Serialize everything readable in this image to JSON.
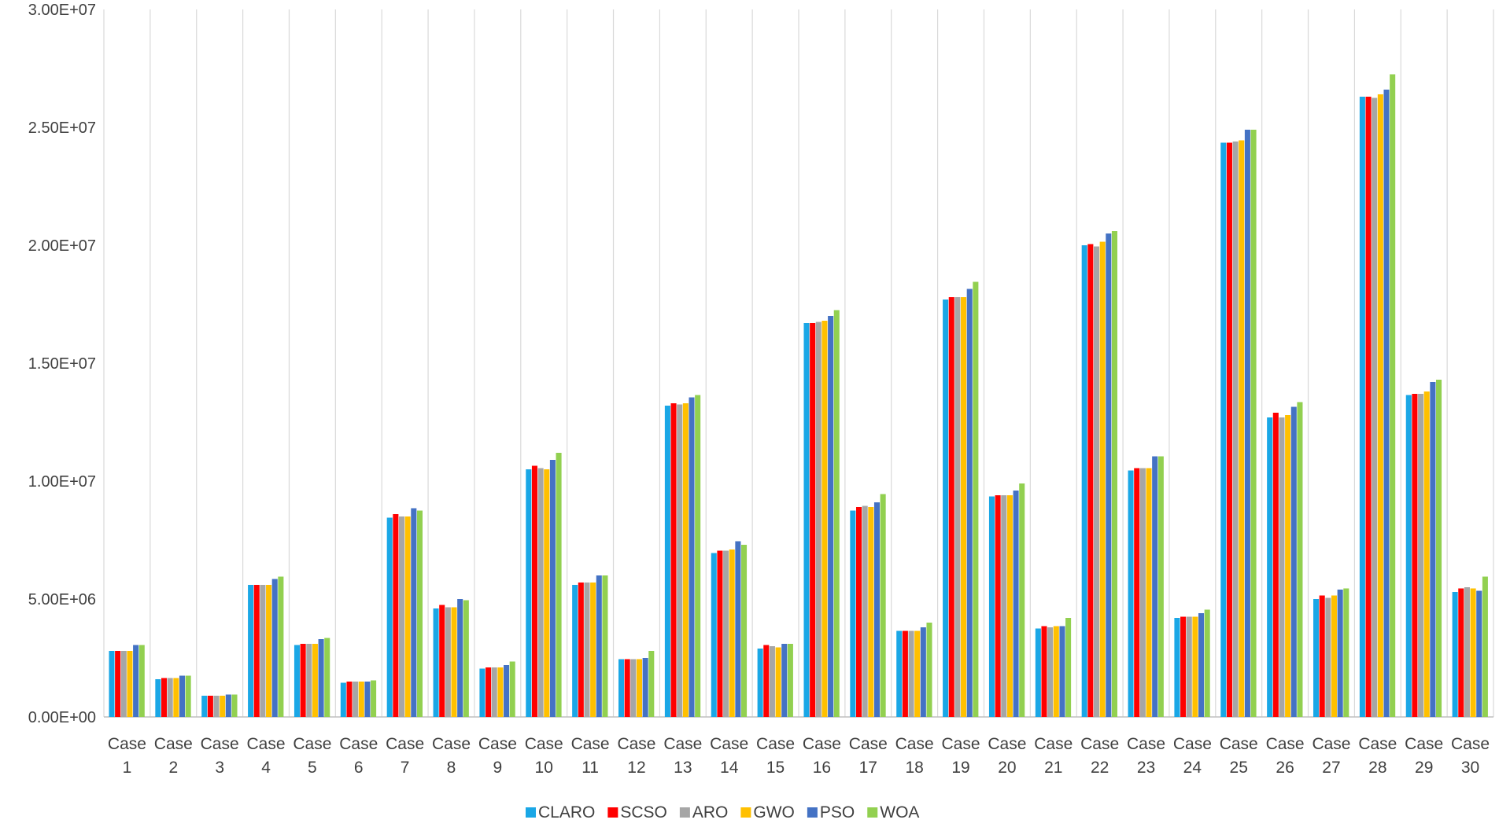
{
  "chart_data": {
    "type": "bar",
    "title": "",
    "xlabel": "",
    "ylabel": "",
    "ylim": [
      0,
      30000000
    ],
    "yticks": [
      "0.00E+00",
      "5.00E+06",
      "1.00E+07",
      "1.50E+07",
      "2.00E+07",
      "2.50E+07",
      "3.00E+07"
    ],
    "grid": "vertical",
    "legend_position": "bottom",
    "categories": [
      "Case 1",
      "Case 2",
      "Case 3",
      "Case 4",
      "Case 5",
      "Case 6",
      "Case 7",
      "Case 8",
      "Case 9",
      "Case 10",
      "Case 11",
      "Case 12",
      "Case 13",
      "Case 14",
      "Case 15",
      "Case 16",
      "Case 17",
      "Case 18",
      "Case 19",
      "Case 20",
      "Case 21",
      "Case 22",
      "Case 23",
      "Case 24",
      "Case 25",
      "Case 26",
      "Case 27",
      "Case 28",
      "Case 29",
      "Case 30"
    ],
    "series": [
      {
        "name": "CLARO",
        "color": "#1aa7e6",
        "values": [
          2800000,
          1600000,
          900000,
          5600000,
          3050000,
          1450000,
          8450000,
          4600000,
          2050000,
          10500000,
          5600000,
          2450000,
          13200000,
          6950000,
          2900000,
          16700000,
          8750000,
          3650000,
          17700000,
          9350000,
          3750000,
          20000000,
          10450000,
          4200000,
          24350000,
          12700000,
          5000000,
          26300000,
          13650000,
          5300000
        ]
      },
      {
        "name": "SCSO",
        "color": "#ff0000",
        "values": [
          2800000,
          1650000,
          900000,
          5600000,
          3100000,
          1500000,
          8600000,
          4750000,
          2100000,
          10650000,
          5700000,
          2450000,
          13300000,
          7050000,
          3050000,
          16700000,
          8900000,
          3650000,
          17800000,
          9400000,
          3850000,
          20050000,
          10550000,
          4250000,
          24350000,
          12900000,
          5150000,
          26300000,
          13700000,
          5450000
        ]
      },
      {
        "name": "ARO",
        "color": "#a6a6a6",
        "values": [
          2800000,
          1650000,
          900000,
          5600000,
          3100000,
          1500000,
          8500000,
          4650000,
          2100000,
          10550000,
          5700000,
          2450000,
          13250000,
          7050000,
          3000000,
          16750000,
          8950000,
          3650000,
          17800000,
          9400000,
          3800000,
          19950000,
          10550000,
          4250000,
          24400000,
          12700000,
          5050000,
          26250000,
          13700000,
          5500000
        ]
      },
      {
        "name": "GWO",
        "color": "#ffc000",
        "values": [
          2800000,
          1650000,
          900000,
          5600000,
          3100000,
          1500000,
          8500000,
          4650000,
          2100000,
          10500000,
          5700000,
          2450000,
          13300000,
          7100000,
          2950000,
          16800000,
          8900000,
          3650000,
          17800000,
          9400000,
          3850000,
          20150000,
          10550000,
          4250000,
          24450000,
          12800000,
          5150000,
          26400000,
          13800000,
          5450000
        ]
      },
      {
        "name": "PSO",
        "color": "#4472c4",
        "values": [
          3050000,
          1750000,
          950000,
          5850000,
          3300000,
          1500000,
          8850000,
          5000000,
          2200000,
          10900000,
          6000000,
          2500000,
          13550000,
          7450000,
          3100000,
          17000000,
          9100000,
          3800000,
          18150000,
          9600000,
          3850000,
          20500000,
          11050000,
          4400000,
          24900000,
          13150000,
          5400000,
          26600000,
          14200000,
          5350000
        ]
      },
      {
        "name": "WOA",
        "color": "#92d050",
        "values": [
          3050000,
          1750000,
          950000,
          5950000,
          3350000,
          1550000,
          8750000,
          4950000,
          2350000,
          11200000,
          6000000,
          2800000,
          13650000,
          7300000,
          3100000,
          17250000,
          9450000,
          4000000,
          18450000,
          9900000,
          4200000,
          20600000,
          11050000,
          4550000,
          24900000,
          13350000,
          5450000,
          27250000,
          14300000,
          5950000
        ]
      }
    ]
  }
}
